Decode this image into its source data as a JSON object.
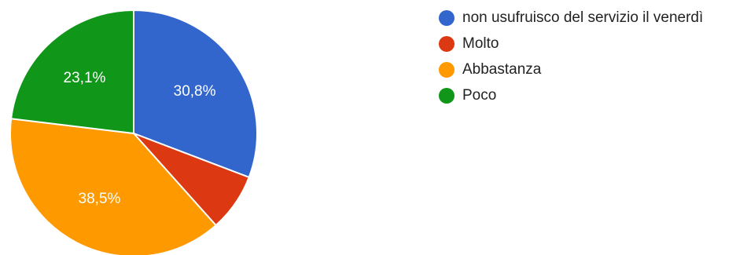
{
  "chart_data": {
    "type": "pie",
    "slices": [
      {
        "label": "non usufruisco del servizio il venerdì",
        "value": 30.8,
        "value_label": "30,8%",
        "color": "#3366cc"
      },
      {
        "label": "Molto",
        "value": 7.6,
        "value_label": "",
        "color": "#dc3912"
      },
      {
        "label": "Abbastanza",
        "value": 38.5,
        "value_label": "38,5%",
        "color": "#ff9900"
      },
      {
        "label": "Poco",
        "value": 23.1,
        "value_label": "23,1%",
        "color": "#109618"
      }
    ],
    "start_angle_deg": 90,
    "direction": "clockwise",
    "legend_position": "top-right"
  }
}
